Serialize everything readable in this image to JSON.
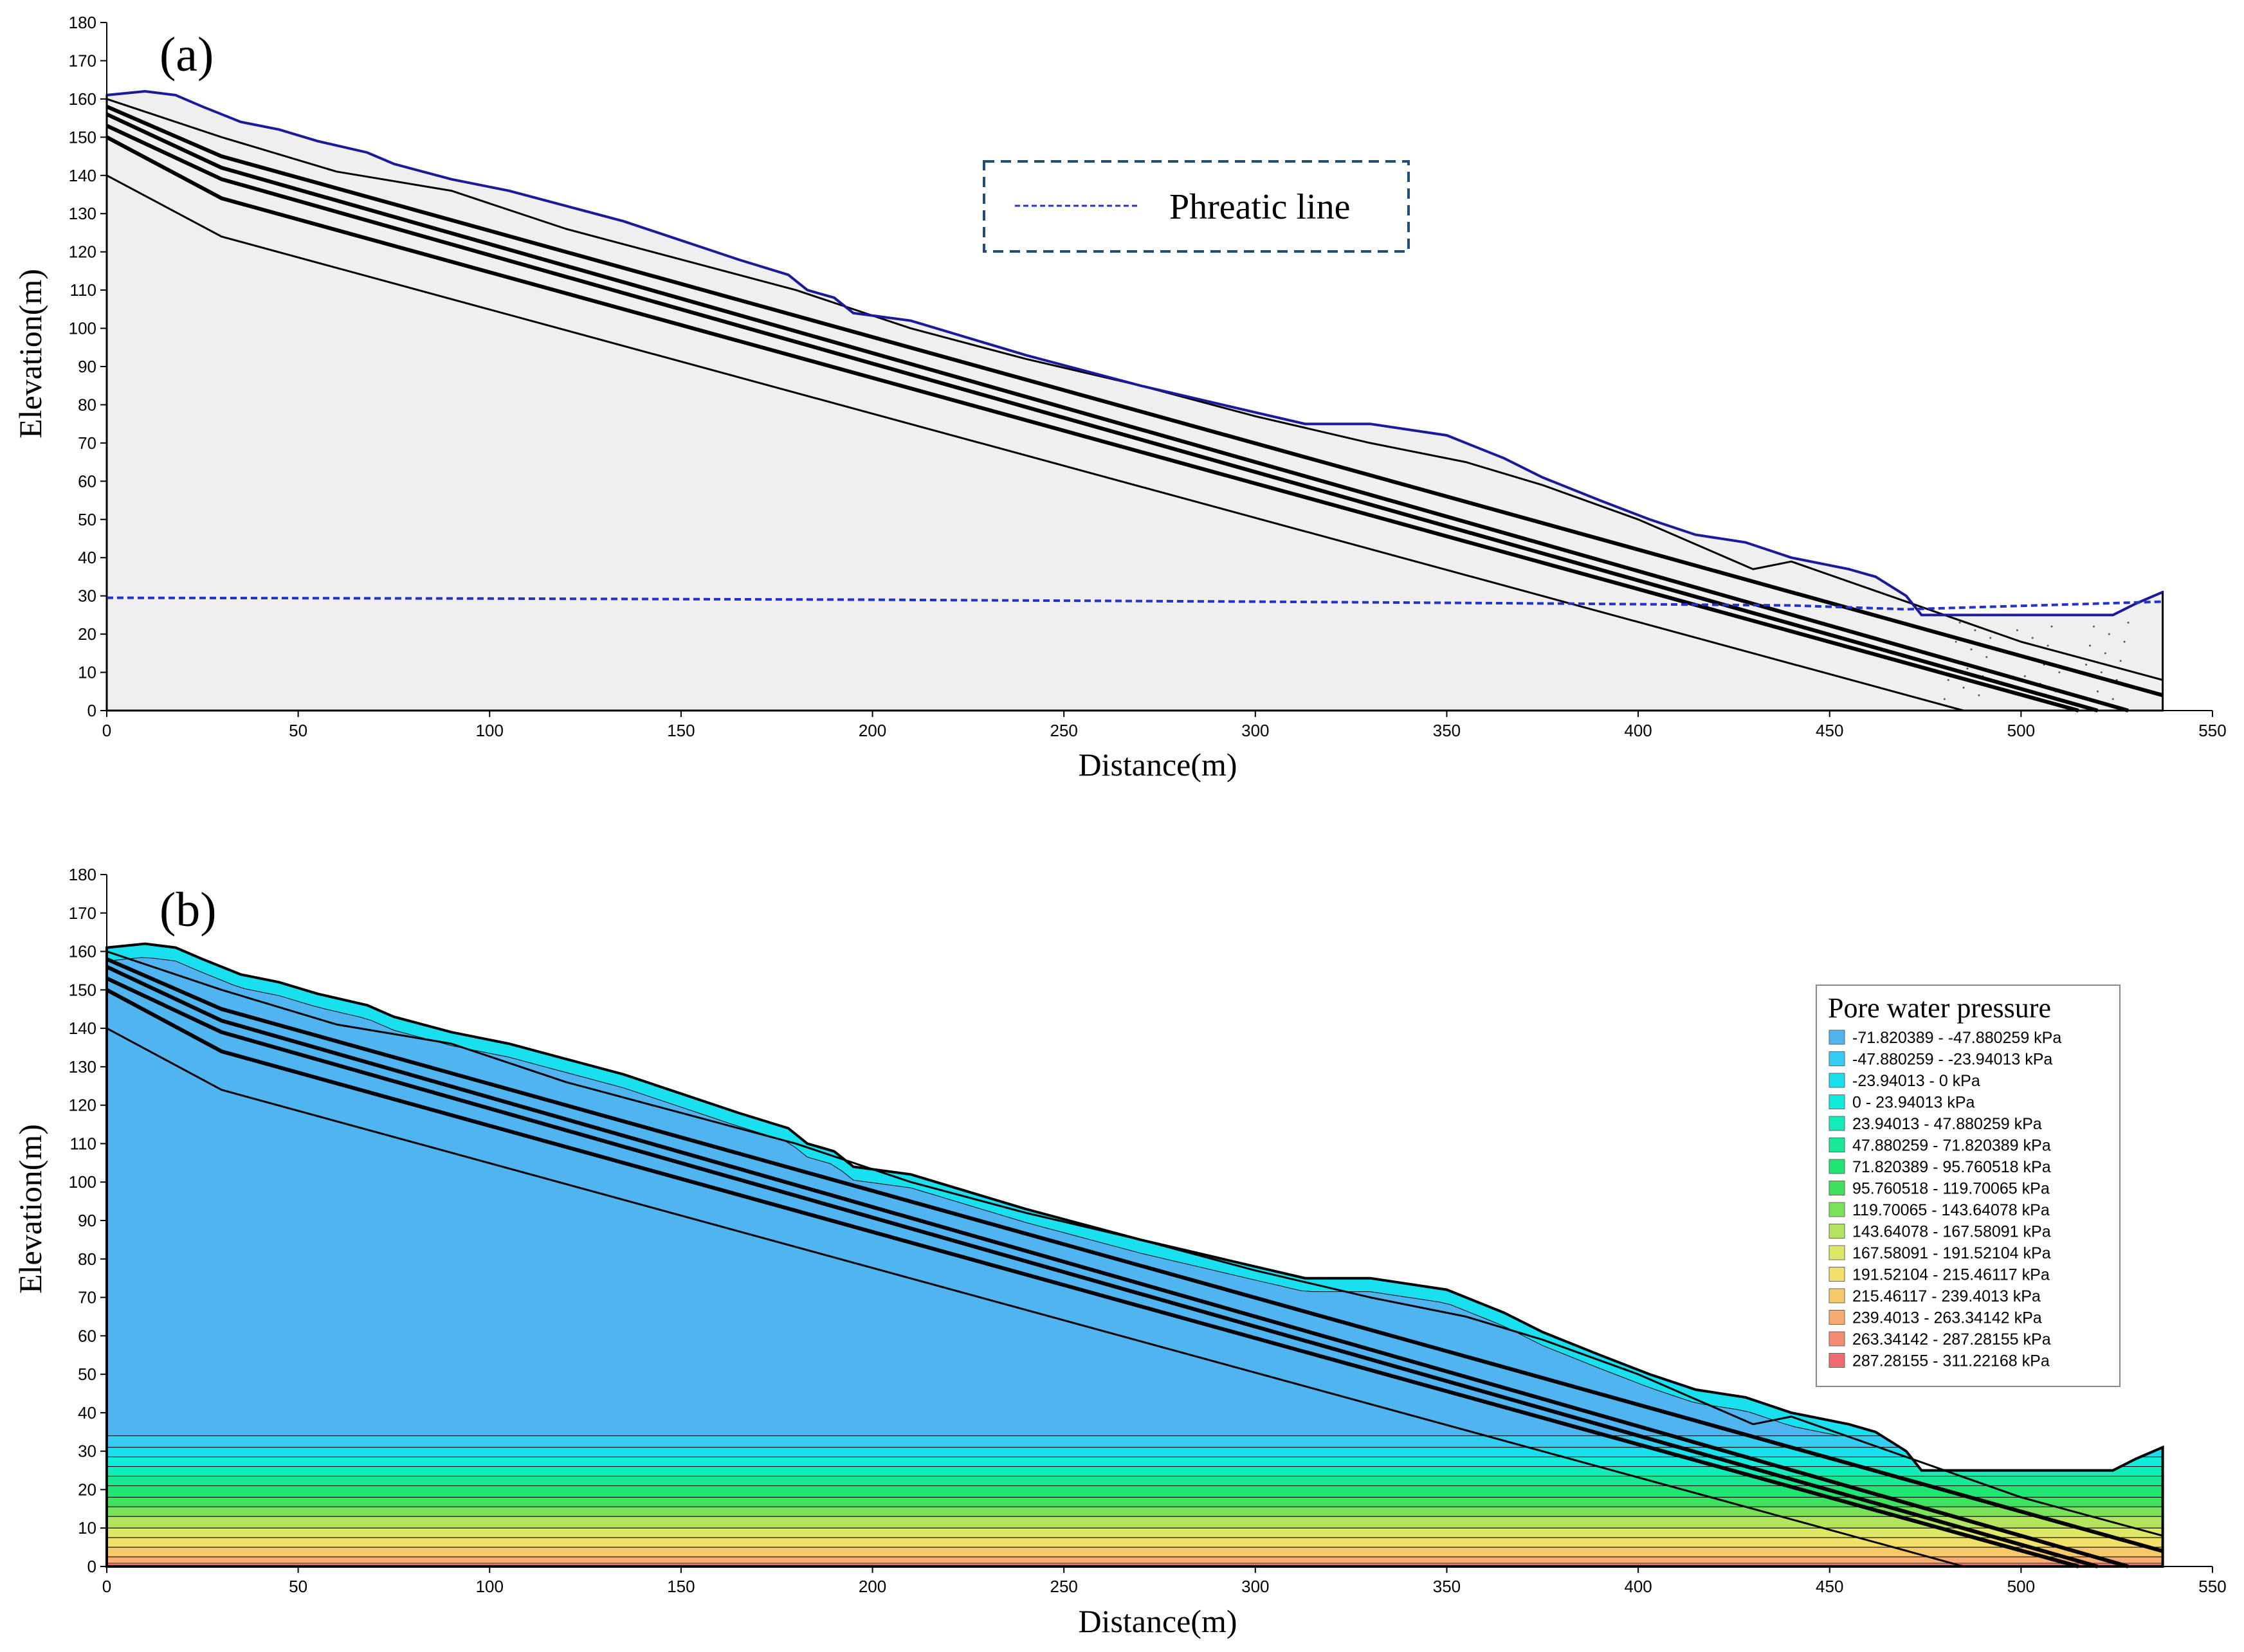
{
  "colors": {
    "domain_fill": "#efefef",
    "ground_line": "#1a1a9a",
    "phreatic": "#2233cc",
    "layer_line": "#000000",
    "legend_border": "#1f4e79"
  },
  "chart_data": [
    {
      "type": "area",
      "panel_label": "(a)",
      "xlabel": "Distance(m)",
      "ylabel": "Elevation(m)",
      "xlim": [
        0,
        550
      ],
      "ylim": [
        0,
        180
      ],
      "xticks": [
        0,
        50,
        100,
        150,
        200,
        250,
        300,
        350,
        400,
        450,
        500,
        550
      ],
      "yticks": [
        0,
        10,
        20,
        30,
        40,
        50,
        60,
        70,
        80,
        90,
        100,
        110,
        120,
        130,
        140,
        150,
        160,
        170,
        180
      ],
      "legend": {
        "label": "Phreatic line",
        "position": "top-center"
      },
      "series": [
        {
          "name": "Ground surface",
          "x": [
            0,
            10,
            18,
            25,
            35,
            45,
            55,
            68,
            75,
            90,
            105,
            120,
            135,
            150,
            165,
            178,
            183,
            190,
            195,
            210,
            240,
            270,
            300,
            313,
            330,
            350,
            365,
            375,
            390,
            403,
            415,
            428,
            440,
            455,
            462,
            470,
            474,
            524,
            530,
            537
          ],
          "y": [
            161,
            162,
            161,
            158,
            154,
            152,
            149,
            146,
            143,
            139,
            136,
            132,
            128,
            123,
            118,
            114,
            110,
            108,
            104,
            102,
            93,
            85,
            78,
            75,
            75,
            72,
            66,
            61,
            55,
            50,
            46,
            44,
            40,
            37,
            35,
            30,
            25,
            25,
            28,
            31
          ]
        },
        {
          "name": "Phreatic line",
          "x": [
            0,
            100,
            200,
            300,
            380,
            440,
            470,
            537
          ],
          "y": [
            29.5,
            29.3,
            29.0,
            28.5,
            28,
            27.5,
            26.5,
            28.5
          ]
        },
        {
          "name": "Layer boundary 1",
          "x": [
            0,
            30,
            60,
            90,
            120,
            150,
            180,
            210,
            240,
            270,
            300,
            330,
            355,
            375,
            400,
            430,
            440,
            500,
            537
          ],
          "y": [
            160,
            150,
            141,
            136,
            126,
            118,
            110,
            100,
            92,
            85,
            77,
            70,
            65,
            59,
            50,
            37,
            39,
            18,
            8
          ]
        },
        {
          "name": "Layer boundary 2",
          "x": [
            0,
            30,
            537
          ],
          "y": [
            158,
            145,
            4
          ]
        },
        {
          "name": "Layer boundary 3",
          "x": [
            0,
            30,
            528
          ],
          "y": [
            156,
            142,
            0
          ]
        },
        {
          "name": "Layer boundary 4",
          "x": [
            0,
            30,
            520
          ],
          "y": [
            153,
            139,
            0
          ]
        },
        {
          "name": "Layer boundary 5",
          "x": [
            0,
            30,
            515
          ],
          "y": [
            150,
            134,
            0
          ]
        },
        {
          "name": "Layer boundary 6",
          "x": [
            0,
            30,
            485
          ],
          "y": [
            140,
            124,
            0
          ]
        }
      ]
    },
    {
      "type": "heatmap",
      "panel_label": "(b)",
      "xlabel": "Distance(m)",
      "ylabel": "Elevation(m)",
      "xlim": [
        0,
        550
      ],
      "ylim": [
        0,
        180
      ],
      "xticks": [
        0,
        50,
        100,
        150,
        200,
        250,
        300,
        350,
        400,
        450,
        500,
        550
      ],
      "yticks": [
        0,
        10,
        20,
        30,
        40,
        50,
        60,
        70,
        80,
        90,
        100,
        110,
        120,
        130,
        140,
        150,
        160,
        170,
        180
      ],
      "legend": {
        "title": "Pore water pressure",
        "position": "right",
        "items": [
          {
            "label": "-71.820389 - -47.880259 kPa",
            "color": "#4fb4f0"
          },
          {
            "label": "-47.880259 - -23.94013 kPa",
            "color": "#36cdf2"
          },
          {
            "label": "-23.94013 - 0 kPa",
            "color": "#18e0ee"
          },
          {
            "label": "0 - 23.94013 kPa",
            "color": "#12ecdf"
          },
          {
            "label": "23.94013 - 47.880259 kPa",
            "color": "#14ebba"
          },
          {
            "label": "47.880259 - 71.820389 kPa",
            "color": "#18e894"
          },
          {
            "label": "71.820389 - 95.760518 kPa",
            "color": "#1fe572"
          },
          {
            "label": "95.760518 - 119.70065 kPa",
            "color": "#3ee25e"
          },
          {
            "label": "119.70065 - 143.64078 kPa",
            "color": "#7ae25a"
          },
          {
            "label": "143.64078 - 167.58091 kPa",
            "color": "#b2e45e"
          },
          {
            "label": "167.58091 - 191.52104 kPa",
            "color": "#dce866"
          },
          {
            "label": "191.52104 - 215.46117 kPa",
            "color": "#f2e06a"
          },
          {
            "label": "215.46117 - 239.4013 kPa",
            "color": "#f6c86c"
          },
          {
            "label": "239.4013 - 263.34142 kPa",
            "color": "#f6ac72"
          },
          {
            "label": "263.34142 - 287.28155 kPa",
            "color": "#f48c72"
          },
          {
            "label": "287.28155 - 311.22168 kPa",
            "color": "#f06a72"
          }
        ]
      },
      "contours": {
        "saturated_top": 34,
        "band_tops": [
          34,
          31,
          28.5,
          26,
          23.5,
          21,
          18,
          15.5,
          13,
          10,
          7.5,
          5,
          2.5,
          0.8
        ]
      }
    }
  ]
}
